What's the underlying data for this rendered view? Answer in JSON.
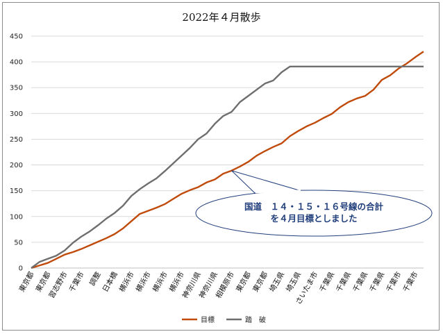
{
  "chart_data": {
    "type": "line",
    "title": "2022年４月散歩",
    "xlabel": "",
    "ylabel": "",
    "ylim": [
      0,
      450
    ],
    "yticks": [
      0,
      50,
      100,
      150,
      200,
      250,
      300,
      350,
      400,
      450
    ],
    "grid": true,
    "legend_position": "bottom",
    "x_labels": [
      {
        "index": 0,
        "label": "東京都"
      },
      {
        "index": 2,
        "label": "東京都"
      },
      {
        "index": 4,
        "label": "習志野市"
      },
      {
        "index": 6,
        "label": "千葉市"
      },
      {
        "index": 8,
        "label": "調整"
      },
      {
        "index": 10,
        "label": "日本橋"
      },
      {
        "index": 12,
        "label": "横浜市"
      },
      {
        "index": 14,
        "label": "横浜市"
      },
      {
        "index": 16,
        "label": "横浜市"
      },
      {
        "index": 18,
        "label": "横浜市"
      },
      {
        "index": 20,
        "label": "神奈川県"
      },
      {
        "index": 22,
        "label": "神奈川県"
      },
      {
        "index": 24,
        "label": "相模原市"
      },
      {
        "index": 26,
        "label": "東京都"
      },
      {
        "index": 28,
        "label": "東京都"
      },
      {
        "index": 30,
        "label": "埼玉県"
      },
      {
        "index": 32,
        "label": "埼玉県"
      },
      {
        "index": 34,
        "label": "さいたま市"
      },
      {
        "index": 36,
        "label": "千葉県"
      },
      {
        "index": 38,
        "label": "千葉県"
      },
      {
        "index": 40,
        "label": "千葉県"
      },
      {
        "index": 42,
        "label": "千葉県"
      },
      {
        "index": 44,
        "label": "千葉市"
      },
      {
        "index": 46,
        "label": "千葉市"
      }
    ],
    "series": [
      {
        "name": "目標",
        "color": "#c04a0a",
        "values": [
          0,
          5,
          10,
          18,
          26,
          31,
          37,
          44,
          51,
          58,
          66,
          77,
          91,
          105,
          111,
          117,
          124,
          134,
          144,
          151,
          157,
          166,
          172,
          183,
          189,
          197,
          206,
          218,
          227,
          235,
          242,
          256,
          266,
          275,
          282,
          291,
          299,
          312,
          322,
          329,
          334,
          346,
          365,
          374,
          387,
          397,
          409,
          420
        ]
      },
      {
        "name": "踏　破",
        "color": "#6e6e6e",
        "values": [
          0,
          12,
          18,
          24,
          34,
          49,
          61,
          71,
          83,
          96,
          107,
          121,
          140,
          153,
          164,
          174,
          188,
          203,
          218,
          233,
          250,
          261,
          280,
          295,
          303,
          322,
          334,
          346,
          358,
          364,
          380,
          391,
          391,
          391,
          391,
          391,
          391,
          391,
          391,
          391,
          391,
          391,
          391,
          391,
          391,
          391,
          391,
          391
        ]
      }
    ],
    "annotation": {
      "lines": [
        "国道　１４・１５・１６号線の合計",
        "を４月目標としました"
      ],
      "points_to_index": 24
    }
  },
  "legend": {
    "items": [
      "目標",
      "踏　破"
    ]
  }
}
